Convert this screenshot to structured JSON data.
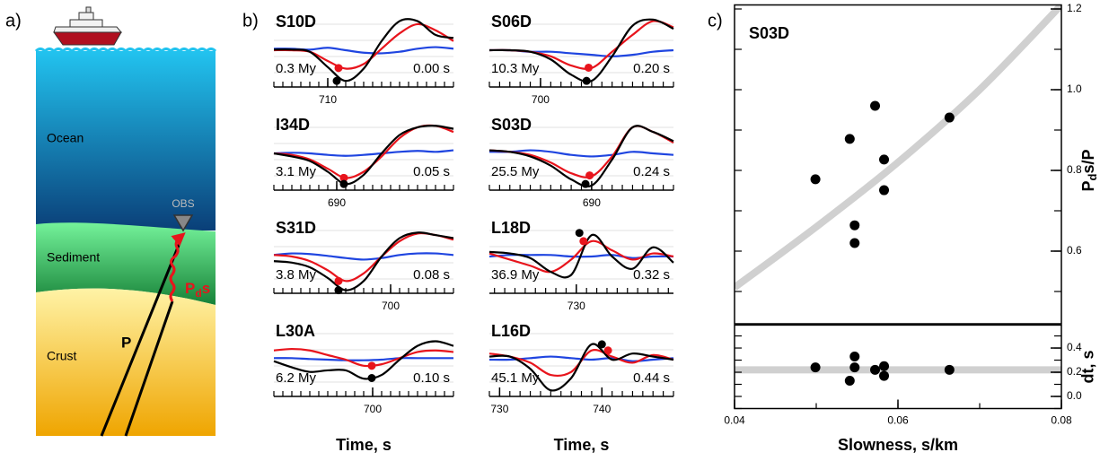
{
  "panel_labels": [
    "a)",
    "b)",
    "c)"
  ],
  "diagram": {
    "layers": [
      "Ocean",
      "Sediment",
      "Crust"
    ],
    "station": "OBS",
    "direct_phase": "P",
    "converted_phase": {
      "base": "P",
      "sub": "d",
      "tail": "s"
    }
  },
  "chart_data": [
    {
      "type": "waveform",
      "title": "S10D",
      "annotations": [
        "0.3 My",
        "0.00 s"
      ],
      "xlim": [
        704,
        724
      ],
      "xticks": [
        710
      ],
      "minor_step": 1,
      "ylim": [
        -1.2,
        1.2
      ],
      "x": [
        704,
        706,
        708,
        710,
        712,
        714,
        716,
        718,
        720,
        722,
        724
      ],
      "series": [
        {
          "color": "#1f45e0",
          "values": [
            0.05,
            0.05,
            0.02,
            0.08,
            0.0,
            -0.08,
            -0.1,
            -0.05,
            0.05,
            0.1,
            0.05
          ]
        },
        {
          "color": "#e8141c",
          "values": [
            0.0,
            0.0,
            -0.05,
            -0.35,
            -0.6,
            -0.45,
            0.05,
            0.55,
            0.85,
            0.65,
            0.3
          ],
          "dot": {
            "x": 711.2,
            "y": -0.58
          }
        },
        {
          "color": "#000000",
          "values": [
            0.02,
            0.02,
            -0.05,
            -0.55,
            -1.0,
            -0.6,
            0.3,
            0.95,
            0.95,
            0.5,
            0.4
          ],
          "dot": {
            "x": 711.0,
            "y": -1.0
          }
        }
      ]
    },
    {
      "type": "waveform",
      "title": "I34D",
      "annotations": [
        "3.1 My",
        "0.05 s"
      ],
      "xlim": [
        683,
        703
      ],
      "xticks": [
        690
      ],
      "minor_step": 1,
      "ylim": [
        -1.2,
        1.2
      ],
      "x": [
        683,
        685,
        687,
        689,
        691,
        693,
        695,
        697,
        699,
        701,
        703
      ],
      "series": [
        {
          "color": "#1f45e0",
          "values": [
            0.0,
            0.02,
            0.0,
            -0.05,
            -0.08,
            -0.05,
            0.0,
            0.05,
            0.08,
            0.05,
            0.1
          ]
        },
        {
          "color": "#e8141c",
          "values": [
            0.0,
            -0.05,
            -0.2,
            -0.5,
            -0.8,
            -0.6,
            -0.1,
            0.5,
            0.85,
            0.9,
            0.7
          ],
          "dot": {
            "x": 690.8,
            "y": -0.8
          }
        },
        {
          "color": "#000000",
          "values": [
            0.0,
            -0.1,
            -0.25,
            -0.6,
            -1.0,
            -0.7,
            0.0,
            0.6,
            0.85,
            0.9,
            0.8
          ],
          "dot": {
            "x": 690.8,
            "y": -1.0
          }
        }
      ]
    },
    {
      "type": "waveform",
      "title": "S31D",
      "annotations": [
        "3.8 My",
        "0.08 s"
      ],
      "xlim": [
        687,
        707
      ],
      "xticks": [
        700
      ],
      "minor_step": 1,
      "ylim": [
        -1.2,
        1.2
      ],
      "x": [
        687,
        689,
        691,
        693,
        695,
        697,
        699,
        701,
        703,
        705,
        707
      ],
      "series": [
        {
          "color": "#1f45e0",
          "values": [
            0.05,
            0.1,
            0.08,
            0.02,
            -0.05,
            -0.1,
            -0.05,
            0.05,
            0.1,
            0.1,
            0.05
          ]
        },
        {
          "color": "#e8141c",
          "values": [
            0.05,
            0.0,
            -0.15,
            -0.45,
            -0.8,
            -0.55,
            0.0,
            0.5,
            0.75,
            0.7,
            0.55
          ],
          "dot": {
            "x": 694.2,
            "y": -0.8
          }
        },
        {
          "color": "#000000",
          "values": [
            -0.15,
            -0.2,
            -0.35,
            -0.7,
            -1.1,
            -0.8,
            0.0,
            0.6,
            0.78,
            0.7,
            0.6
          ],
          "dot": {
            "x": 694.2,
            "y": -1.1
          }
        }
      ]
    },
    {
      "type": "waveform",
      "title": "L30A",
      "annotations": [
        "6.2 My",
        "0.10 s"
      ],
      "xlim": [
        689,
        709
      ],
      "xticks": [
        700
      ],
      "minor_step": 1,
      "ylim": [
        -1.2,
        1.2
      ],
      "xlabel": "Time, s",
      "x": [
        689,
        691,
        693,
        695,
        697,
        699,
        701,
        703,
        705,
        707,
        709
      ],
      "series": [
        {
          "color": "#1f45e0",
          "values": [
            0.05,
            0.05,
            0.02,
            0.0,
            -0.02,
            -0.02,
            0.0,
            0.05,
            0.05,
            0.05,
            0.05
          ]
        },
        {
          "color": "#e8141c",
          "values": [
            0.3,
            0.35,
            0.3,
            0.15,
            0.0,
            -0.2,
            -0.15,
            0.05,
            0.25,
            0.3,
            0.25
          ],
          "dot": {
            "x": 699.9,
            "y": -0.2
          }
        },
        {
          "color": "#000000",
          "values": [
            -0.05,
            -0.25,
            -0.4,
            -0.35,
            -0.35,
            -0.62,
            -0.5,
            0.0,
            0.45,
            0.6,
            0.45
          ],
          "dot": {
            "x": 699.9,
            "y": -0.6
          }
        }
      ]
    },
    {
      "type": "waveform",
      "title": "S06D",
      "annotations": [
        "10.3 My",
        "0.20 s"
      ],
      "xlim": [
        695,
        713
      ],
      "xticks": [
        700
      ],
      "minor_step": 1,
      "ylim": [
        -1.2,
        1.2
      ],
      "x": [
        695,
        697,
        699,
        701,
        703,
        705,
        707,
        709,
        711,
        713
      ],
      "series": [
        {
          "color": "#1f45e0",
          "values": [
            0.0,
            0.0,
            -0.05,
            -0.05,
            -0.1,
            -0.15,
            -0.2,
            -0.15,
            -0.05,
            0.0
          ]
        },
        {
          "color": "#e8141c",
          "values": [
            0.0,
            0.0,
            -0.05,
            -0.2,
            -0.5,
            -0.58,
            -0.05,
            0.5,
            0.95,
            0.75
          ],
          "dot": {
            "x": 704.7,
            "y": -0.57
          }
        },
        {
          "color": "#000000",
          "values": [
            0.0,
            0.0,
            -0.05,
            -0.3,
            -0.8,
            -1.0,
            -0.2,
            0.8,
            1.0,
            0.7
          ],
          "dot": {
            "x": 704.5,
            "y": -1.0
          }
        }
      ]
    },
    {
      "type": "waveform",
      "title": "S03D",
      "annotations": [
        "25.5 My",
        "0.24 s"
      ],
      "xlim": [
        680,
        698
      ],
      "xticks": [
        690
      ],
      "minor_step": 1,
      "ylim": [
        -1.2,
        1.2
      ],
      "x": [
        680,
        682,
        684,
        686,
        688,
        690,
        692,
        694,
        696,
        698
      ],
      "series": [
        {
          "color": "#1f45e0",
          "values": [
            0.05,
            0.05,
            0.1,
            0.05,
            -0.05,
            -0.1,
            -0.05,
            0.05,
            0.0,
            -0.05
          ]
        },
        {
          "color": "#e8141c",
          "values": [
            0.1,
            0.05,
            -0.05,
            -0.3,
            -0.65,
            -0.75,
            -0.1,
            0.85,
            0.7,
            0.35
          ],
          "dot": {
            "x": 689.8,
            "y": -0.72
          }
        },
        {
          "color": "#000000",
          "values": [
            0.1,
            0.05,
            -0.1,
            -0.4,
            -0.85,
            -1.05,
            -0.2,
            0.85,
            0.7,
            0.4
          ],
          "dot": {
            "x": 689.4,
            "y": -1.0
          }
        }
      ]
    },
    {
      "type": "waveform",
      "title": "L18D",
      "annotations": [
        "36.9 My",
        "0.32 s"
      ],
      "xlim": [
        721.5,
        739.5
      ],
      "xticks": [
        730
      ],
      "minor_step": 1,
      "ylim": [
        -1.2,
        1.2
      ],
      "x": [
        721.5,
        723.5,
        725.5,
        727.5,
        729.5,
        731.5,
        733.5,
        735.5,
        737.5,
        739.5
      ],
      "series": [
        {
          "color": "#1f45e0",
          "values": [
            0.0,
            0.05,
            0.05,
            0.05,
            0.0,
            0.0,
            0.05,
            -0.05,
            0.0,
            0.0
          ]
        },
        {
          "color": "#e8141c",
          "values": [
            0.1,
            -0.1,
            -0.3,
            -0.5,
            -0.1,
            0.5,
            0.2,
            -0.1,
            0.1,
            0.0
          ],
          "dot": {
            "x": 730.7,
            "y": 0.5
          }
        },
        {
          "color": "#000000",
          "values": [
            0.15,
            0.1,
            -0.05,
            -0.5,
            -0.6,
            0.7,
            0.0,
            -0.4,
            0.3,
            -0.2
          ],
          "dot": {
            "x": 730.3,
            "y": 0.77
          }
        }
      ]
    },
    {
      "type": "waveform",
      "title": "L16D",
      "annotations": [
        "45.1 My",
        "0.44 s"
      ],
      "xlim": [
        729,
        747
      ],
      "xticks": [
        730,
        740
      ],
      "minor_step": 1,
      "ylim": [
        -1.2,
        1.2
      ],
      "xlabel": "Time, s",
      "x": [
        729,
        731,
        733,
        735,
        737,
        739,
        741,
        743,
        745,
        747
      ],
      "series": [
        {
          "color": "#1f45e0",
          "values": [
            0.0,
            0.0,
            0.05,
            0.1,
            0.05,
            0.0,
            0.05,
            -0.05,
            0.0,
            0.05
          ]
        },
        {
          "color": "#e8141c",
          "values": [
            0.2,
            0.1,
            -0.1,
            -0.5,
            -0.4,
            0.3,
            0.1,
            -0.1,
            0.15,
            0.0
          ],
          "dot": {
            "x": 740.6,
            "y": 0.3
          }
        },
        {
          "color": "#000000",
          "values": [
            0.1,
            0.1,
            -0.3,
            -1.0,
            -0.6,
            0.5,
            0.0,
            0.2,
            0.1,
            0.0
          ],
          "dot": {
            "x": 740.0,
            "y": 0.5
          }
        }
      ]
    },
    {
      "type": "scatter",
      "title": "S03D",
      "xlim": [
        0.04,
        0.08
      ],
      "ylim": [
        0.42,
        1.21
      ],
      "yticks": [
        0.6,
        0.8,
        {
          "value": 1,
          "label": "1.0"
        },
        1.2
      ],
      "minor_step": 0.1,
      "ylabel": {
        "base": "P",
        "sub": "d",
        "tail": "s/P"
      },
      "color": "#000000",
      "x": [
        0.0499,
        0.0541,
        0.0547,
        0.0547,
        0.0572,
        0.0583,
        0.0583,
        0.0663
      ],
      "values": [
        0.778,
        0.878,
        0.664,
        0.62,
        0.96,
        0.827,
        0.751,
        0.931
      ],
      "fit": {
        "color": "#d0d0d0",
        "x": [
          0.04,
          0.05,
          0.06,
          0.07,
          0.08
        ],
        "values": [
          0.51,
          0.66,
          0.82,
          1.0,
          1.21
        ]
      }
    },
    {
      "type": "scatter",
      "xlim": [
        0.04,
        0.08
      ],
      "ylim": [
        -0.1,
        0.59
      ],
      "yticks": [
        {
          "value": 0,
          "label": "0.0"
        },
        0.2,
        0.4
      ],
      "minor_step": 0.1,
      "xticks": [
        0.04,
        0.06,
        0.08
      ],
      "xminor_step": 0.01,
      "xlabel": "Slowness, s/km",
      "ylabel": "dt, s",
      "color": "#000000",
      "x": [
        0.0499,
        0.0541,
        0.0547,
        0.0547,
        0.0572,
        0.0583,
        0.0583,
        0.0663
      ],
      "values": [
        0.24,
        0.13,
        0.33,
        0.24,
        0.22,
        0.25,
        0.17,
        0.22
      ],
      "fit": {
        "color": "#d0d0d0",
        "x": [
          0.04,
          0.08
        ],
        "values": [
          0.22,
          0.22
        ]
      }
    }
  ]
}
